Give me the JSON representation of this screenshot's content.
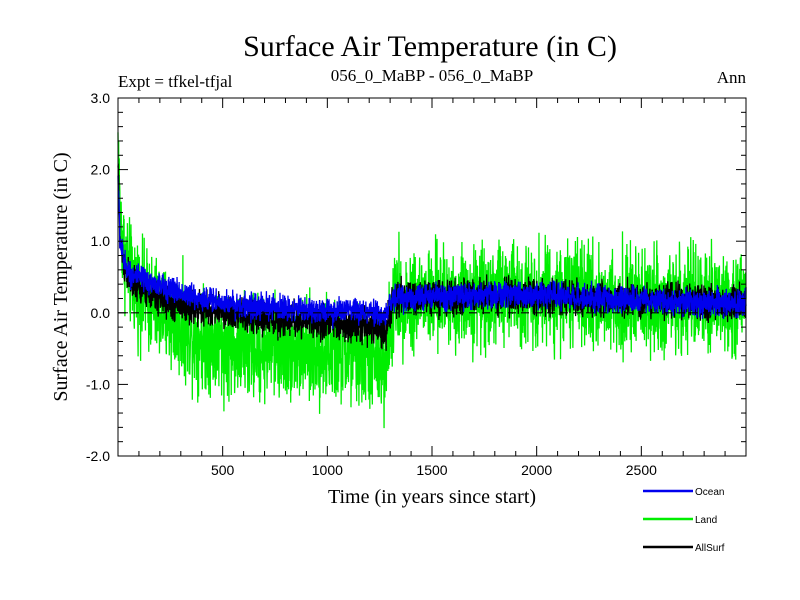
{
  "chart_data": {
    "type": "line",
    "title": "Surface Air Temperature (in C)",
    "left_subtitle": "Expt = tfkel-tfjal",
    "center_subtitle": "056_0_MaBP - 056_0_MaBP",
    "right_subtitle": "Ann",
    "xlabel": "Time (in years since start)",
    "ylabel": "Surface Air Temperature (in C)",
    "xlim": [
      0,
      3000
    ],
    "ylim": [
      -2.0,
      3.0
    ],
    "x_ticks": [
      500,
      1000,
      1500,
      2000,
      2500
    ],
    "x_tick_labels": [
      "500",
      "1000",
      "1500",
      "2000",
      "2500"
    ],
    "y_ticks": [
      -2.0,
      -1.0,
      0.0,
      1.0,
      2.0,
      3.0
    ],
    "y_tick_labels": [
      "-2.0",
      "-1.0",
      "0.0",
      "1.0",
      "2.0",
      "3.0"
    ],
    "zero_line": {
      "y": 0.0,
      "style": "dashed",
      "color": "#000000"
    },
    "legend_position": "bottom-right, below plot",
    "series": [
      {
        "name": "Land",
        "color": "#00ee00",
        "noise_amplitude": 0.35,
        "trend_points": [
          [
            0,
            2.4
          ],
          [
            10,
            1.3
          ],
          [
            30,
            0.8
          ],
          [
            60,
            0.5
          ],
          [
            100,
            0.3
          ],
          [
            200,
            0.0
          ],
          [
            300,
            -0.2
          ],
          [
            400,
            -0.35
          ],
          [
            500,
            -0.45
          ],
          [
            600,
            -0.5
          ],
          [
            700,
            -0.5
          ],
          [
            800,
            -0.5
          ],
          [
            900,
            -0.55
          ],
          [
            1000,
            -0.55
          ],
          [
            1100,
            -0.6
          ],
          [
            1200,
            -0.65
          ],
          [
            1270,
            -0.75
          ],
          [
            1300,
            -0.2
          ],
          [
            1320,
            0.2
          ],
          [
            1500,
            0.2
          ],
          [
            1700,
            0.22
          ],
          [
            1900,
            0.3
          ],
          [
            2100,
            0.25
          ],
          [
            2300,
            0.2
          ],
          [
            2500,
            0.15
          ],
          [
            2700,
            0.15
          ],
          [
            3000,
            0.12
          ]
        ]
      },
      {
        "name": "AllSurf",
        "color": "#000000",
        "noise_amplitude": 0.12,
        "trend_points": [
          [
            0,
            2.0
          ],
          [
            10,
            1.0
          ],
          [
            30,
            0.65
          ],
          [
            60,
            0.45
          ],
          [
            100,
            0.35
          ],
          [
            200,
            0.2
          ],
          [
            300,
            0.1
          ],
          [
            400,
            0.05
          ],
          [
            500,
            0.0
          ],
          [
            600,
            -0.05
          ],
          [
            700,
            -0.08
          ],
          [
            800,
            -0.1
          ],
          [
            900,
            -0.12
          ],
          [
            1000,
            -0.13
          ],
          [
            1100,
            -0.15
          ],
          [
            1200,
            -0.2
          ],
          [
            1280,
            -0.25
          ],
          [
            1300,
            0.05
          ],
          [
            1320,
            0.2
          ],
          [
            1500,
            0.22
          ],
          [
            1900,
            0.25
          ],
          [
            2300,
            0.2
          ],
          [
            2700,
            0.15
          ],
          [
            3000,
            0.13
          ]
        ]
      },
      {
        "name": "Ocean",
        "color": "#0000ee",
        "noise_amplitude": 0.09,
        "trend_points": [
          [
            0,
            1.9
          ],
          [
            10,
            1.0
          ],
          [
            30,
            0.7
          ],
          [
            60,
            0.55
          ],
          [
            100,
            0.48
          ],
          [
            200,
            0.38
          ],
          [
            300,
            0.28
          ],
          [
            400,
            0.2
          ],
          [
            500,
            0.15
          ],
          [
            600,
            0.1
          ],
          [
            700,
            0.08
          ],
          [
            800,
            0.06
          ],
          [
            900,
            0.05
          ],
          [
            1000,
            0.03
          ],
          [
            1100,
            0.02
          ],
          [
            1200,
            0.0
          ],
          [
            1280,
            -0.05
          ],
          [
            1300,
            0.15
          ],
          [
            1330,
            0.22
          ],
          [
            1500,
            0.22
          ],
          [
            1900,
            0.26
          ],
          [
            2100,
            0.24
          ],
          [
            2300,
            0.2
          ],
          [
            2500,
            0.17
          ],
          [
            2700,
            0.15
          ],
          [
            3000,
            0.13
          ]
        ]
      }
    ],
    "legend_order": [
      "Ocean",
      "Land",
      "AllSurf"
    ]
  }
}
